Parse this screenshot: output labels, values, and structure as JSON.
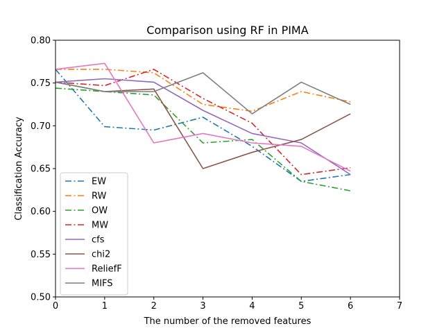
{
  "chart_data": {
    "type": "line",
    "title": "Comparison using RF in PIMA",
    "xlabel": "The number of the removed features",
    "ylabel": "Classification Accuracy",
    "xlim": [
      0,
      7
    ],
    "ylim": [
      0.5,
      0.8
    ],
    "xticks": [
      "0",
      "1",
      "2",
      "3",
      "4",
      "5",
      "6",
      "7"
    ],
    "yticks": [
      "0.50",
      "0.55",
      "0.60",
      "0.65",
      "0.70",
      "0.75",
      "0.80"
    ],
    "grid": false,
    "legend_position": "lower-left",
    "x": [
      0,
      1,
      2,
      3,
      4,
      5,
      6
    ],
    "series": [
      {
        "name": "EW",
        "color": "#1f77b4",
        "style": "dashdot",
        "values": [
          0.766,
          0.699,
          0.695,
          0.71,
          0.676,
          0.635,
          0.643
        ]
      },
      {
        "name": "RW",
        "color": "#ff7f0e",
        "style": "dashdot",
        "values": [
          0.766,
          0.766,
          0.762,
          0.725,
          0.717,
          0.74,
          0.728
        ]
      },
      {
        "name": "OW",
        "color": "#2ca02c",
        "style": "dashdot",
        "values": [
          0.744,
          0.74,
          0.736,
          0.68,
          0.684,
          0.635,
          0.624
        ]
      },
      {
        "name": "MW",
        "color": "#d62728",
        "style": "dashdot",
        "values": [
          0.751,
          0.747,
          0.766,
          0.732,
          0.703,
          0.643,
          0.651
        ]
      },
      {
        "name": "cfs",
        "color": "#9467bd",
        "style": "solid",
        "values": [
          0.751,
          0.755,
          0.751,
          0.718,
          0.691,
          0.68,
          0.643
        ]
      },
      {
        "name": "chi2",
        "color": "#8c564b",
        "style": "solid",
        "values": [
          0.751,
          0.74,
          0.743,
          0.65,
          0.669,
          0.684,
          0.714
        ]
      },
      {
        "name": "ReliefF",
        "color": "#e377c2",
        "style": "solid",
        "values": [
          0.766,
          0.773,
          0.68,
          0.691,
          0.68,
          0.676,
          0.647
        ]
      },
      {
        "name": "MIFS",
        "color": "#7f7f7f",
        "style": "solid",
        "values": [
          0.751,
          0.74,
          0.74,
          0.762,
          0.714,
          0.751,
          0.725
        ]
      }
    ]
  }
}
